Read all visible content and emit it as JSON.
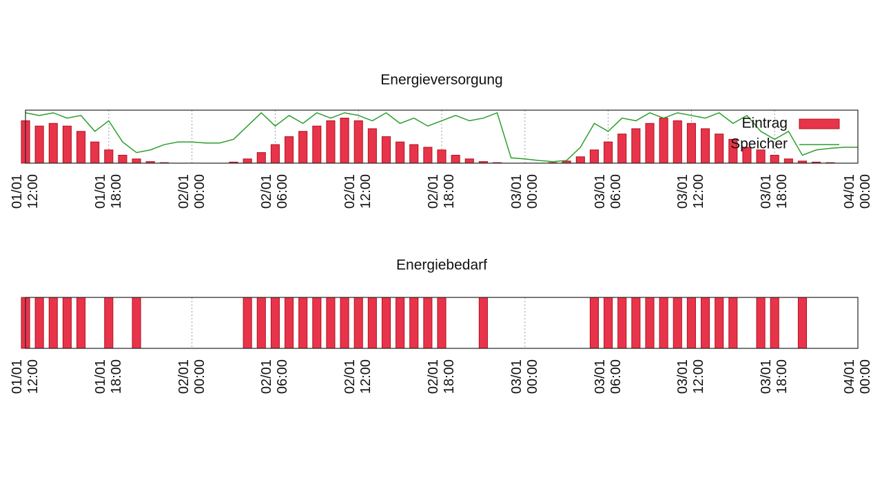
{
  "chart_data": [
    {
      "type": "combo",
      "title": "Energieversorgung",
      "x": [
        "01/01 12:00",
        "01/01 13:00",
        "01/01 14:00",
        "01/01 15:00",
        "01/01 16:00",
        "01/01 17:00",
        "01/01 18:00",
        "01/01 19:00",
        "01/01 20:00",
        "01/01 21:00",
        "01/01 22:00",
        "01/01 23:00",
        "02/01 00:00",
        "02/01 01:00",
        "02/01 02:00",
        "02/01 03:00",
        "02/01 04:00",
        "02/01 05:00",
        "02/01 06:00",
        "02/01 07:00",
        "02/01 08:00",
        "02/01 09:00",
        "02/01 10:00",
        "02/01 11:00",
        "02/01 12:00",
        "02/01 13:00",
        "02/01 14:00",
        "02/01 15:00",
        "02/01 16:00",
        "02/01 17:00",
        "02/01 18:00",
        "02/01 19:00",
        "02/01 20:00",
        "02/01 21:00",
        "02/01 22:00",
        "02/01 23:00",
        "03/01 00:00",
        "03/01 01:00",
        "03/01 02:00",
        "03/01 03:00",
        "03/01 04:00",
        "03/01 05:00",
        "03/01 06:00",
        "03/01 07:00",
        "03/01 08:00",
        "03/01 09:00",
        "03/01 10:00",
        "03/01 11:00",
        "03/01 12:00",
        "03/01 13:00",
        "03/01 14:00",
        "03/01 15:00",
        "03/01 16:00",
        "03/01 17:00",
        "03/01 18:00",
        "03/01 19:00",
        "03/01 20:00",
        "03/01 21:00",
        "03/01 22:00",
        "03/01 23:00",
        "04/01 00:00"
      ],
      "series": [
        {
          "name": "Eintrag",
          "type": "bar",
          "color": "#e8344a",
          "values": [
            80,
            70,
            75,
            70,
            60,
            40,
            25,
            15,
            8,
            3,
            1,
            0,
            0,
            0,
            0,
            2,
            8,
            20,
            35,
            50,
            60,
            70,
            80,
            85,
            80,
            65,
            50,
            40,
            35,
            30,
            25,
            15,
            8,
            3,
            1,
            0,
            0,
            0,
            1,
            4,
            12,
            25,
            40,
            55,
            65,
            75,
            85,
            80,
            75,
            65,
            55,
            45,
            30,
            25,
            15,
            8,
            4,
            2,
            1,
            0,
            0
          ]
        },
        {
          "name": "Speicher",
          "type": "line",
          "color": "#2a9d2a",
          "values": [
            95,
            90,
            95,
            85,
            90,
            60,
            80,
            40,
            20,
            25,
            35,
            40,
            40,
            38,
            38,
            45,
            70,
            95,
            70,
            90,
            75,
            95,
            85,
            95,
            90,
            80,
            95,
            75,
            85,
            70,
            80,
            90,
            80,
            85,
            95,
            10,
            8,
            5,
            3,
            5,
            30,
            75,
            60,
            85,
            80,
            95,
            85,
            95,
            90,
            85,
            95,
            75,
            90,
            60,
            45,
            60,
            15,
            25,
            28,
            30,
            30
          ]
        }
      ],
      "xlim": [
        "01/01 12:00",
        "04/01 00:00"
      ],
      "xticks": [
        "01/01 12:00",
        "01/01 18:00",
        "02/01 00:00",
        "02/01 06:00",
        "02/01 12:00",
        "02/01 18:00",
        "03/01 00:00",
        "03/01 06:00",
        "03/01 12:00",
        "03/01 18:00",
        "04/01 00:00"
      ],
      "ylim": [
        0,
        100
      ],
      "grid": true,
      "legend": "top-right"
    },
    {
      "type": "bar",
      "title": "Energiebedarf",
      "color": "#e8344a",
      "x": [
        "01/01 12:00",
        "01/01 13:00",
        "01/01 14:00",
        "01/01 15:00",
        "01/01 16:00",
        "01/01 17:00",
        "01/01 18:00",
        "01/01 19:00",
        "01/01 20:00",
        "01/01 21:00",
        "01/01 22:00",
        "01/01 23:00",
        "02/01 00:00",
        "02/01 01:00",
        "02/01 02:00",
        "02/01 03:00",
        "02/01 04:00",
        "02/01 05:00",
        "02/01 06:00",
        "02/01 07:00",
        "02/01 08:00",
        "02/01 09:00",
        "02/01 10:00",
        "02/01 11:00",
        "02/01 12:00",
        "02/01 13:00",
        "02/01 14:00",
        "02/01 15:00",
        "02/01 16:00",
        "02/01 17:00",
        "02/01 18:00",
        "02/01 19:00",
        "02/01 20:00",
        "02/01 21:00",
        "02/01 22:00",
        "02/01 23:00",
        "03/01 00:00",
        "03/01 01:00",
        "03/01 02:00",
        "03/01 03:00",
        "03/01 04:00",
        "03/01 05:00",
        "03/01 06:00",
        "03/01 07:00",
        "03/01 08:00",
        "03/01 09:00",
        "03/01 10:00",
        "03/01 11:00",
        "03/01 12:00",
        "03/01 13:00",
        "03/01 14:00",
        "03/01 15:00",
        "03/01 16:00",
        "03/01 17:00",
        "03/01 18:00",
        "03/01 19:00",
        "03/01 20:00",
        "03/01 21:00",
        "03/01 22:00",
        "03/01 23:00",
        "04/01 00:00"
      ],
      "values": [
        1,
        1,
        1,
        1,
        1,
        0,
        1,
        0,
        1,
        0,
        0,
        0,
        0,
        0,
        0,
        0,
        1,
        1,
        1,
        1,
        1,
        1,
        1,
        1,
        1,
        1,
        1,
        1,
        1,
        1,
        1,
        0,
        0,
        1,
        0,
        0,
        0,
        0,
        0,
        0,
        0,
        1,
        1,
        1,
        1,
        1,
        1,
        1,
        1,
        1,
        1,
        1,
        0,
        1,
        1,
        0,
        1,
        0,
        0,
        0,
        0
      ],
      "xlim": [
        "01/01 12:00",
        "04/01 00:00"
      ],
      "xticks": [
        "01/01 12:00",
        "01/01 18:00",
        "02/01 00:00",
        "02/01 06:00",
        "02/01 12:00",
        "02/01 18:00",
        "03/01 00:00",
        "03/01 06:00",
        "03/01 12:00",
        "03/01 18:00",
        "04/01 00:00"
      ],
      "ylim": [
        0,
        1
      ],
      "grid": true
    }
  ]
}
